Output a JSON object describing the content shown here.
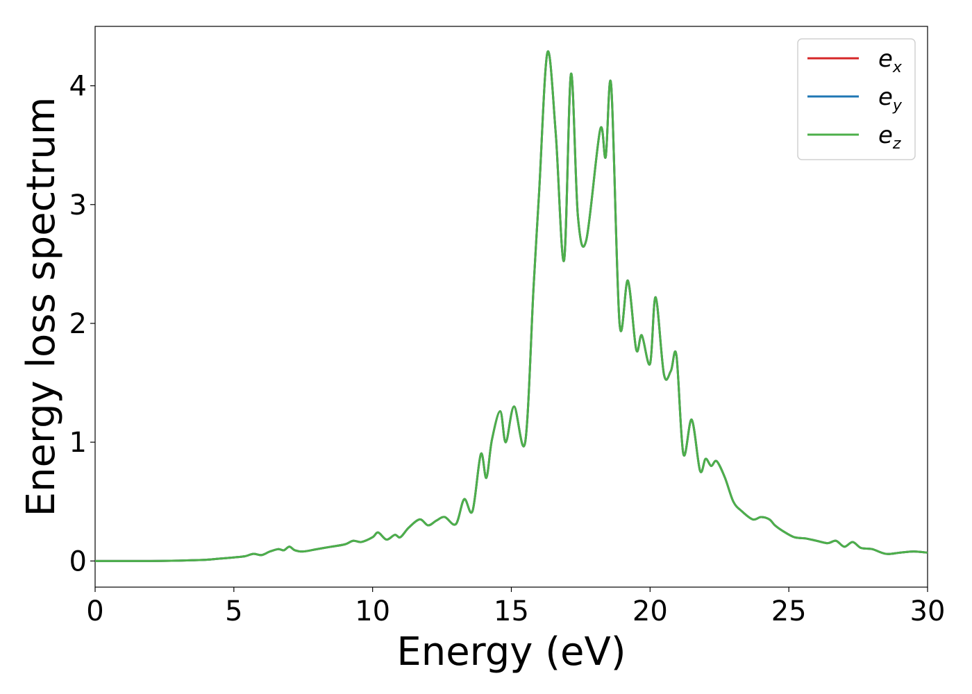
{
  "chart_data": {
    "type": "line",
    "xlabel": "Energy (eV)",
    "ylabel": "Energy loss spectrum",
    "xlim": [
      0,
      30
    ],
    "ylim": [
      -0.22,
      4.5
    ],
    "xticks": [
      0,
      5,
      10,
      15,
      20,
      25,
      30
    ],
    "yticks": [
      0,
      1,
      2,
      3,
      4
    ],
    "grid": false,
    "legend_position": "top-right",
    "series": [
      {
        "name": "e_x",
        "symbol": "e",
        "subscript": "x",
        "color": "#d62728"
      },
      {
        "name": "e_y",
        "symbol": "e",
        "subscript": "y",
        "color": "#1f77b4"
      },
      {
        "name": "e_z",
        "symbol": "e",
        "subscript": "z",
        "color": "#4daf4a"
      }
    ],
    "x": [
      0,
      1,
      2,
      3,
      3.5,
      4,
      4.5,
      5,
      5.4,
      5.7,
      6.0,
      6.3,
      6.6,
      6.8,
      7.0,
      7.2,
      7.5,
      8,
      8.5,
      9,
      9.3,
      9.6,
      10,
      10.2,
      10.5,
      10.8,
      11,
      11.3,
      11.7,
      12,
      12.3,
      12.6,
      13,
      13.3,
      13.6,
      13.9,
      14.1,
      14.3,
      14.6,
      14.8,
      15.1,
      15.5,
      15.8,
      16.0,
      16.3,
      16.6,
      16.9,
      17.15,
      17.4,
      17.7,
      18.2,
      18.4,
      18.6,
      18.9,
      19.2,
      19.5,
      19.7,
      20.0,
      20.2,
      20.5,
      20.75,
      20.95,
      21.2,
      21.5,
      21.8,
      22.0,
      22.2,
      22.4,
      22.7,
      23.0,
      23.3,
      23.7,
      24.0,
      24.3,
      24.5,
      24.8,
      25.2,
      25.6,
      26.0,
      26.4,
      26.7,
      27.0,
      27.3,
      27.6,
      28.0,
      28.5,
      29.0,
      29.5,
      30
    ]
  },
  "y_values_shared": [
    0,
    0,
    0,
    0.003,
    0.006,
    0.01,
    0.02,
    0.03,
    0.04,
    0.06,
    0.05,
    0.08,
    0.1,
    0.09,
    0.12,
    0.09,
    0.08,
    0.1,
    0.12,
    0.14,
    0.17,
    0.16,
    0.2,
    0.24,
    0.18,
    0.22,
    0.2,
    0.28,
    0.35,
    0.3,
    0.34,
    0.37,
    0.31,
    0.52,
    0.42,
    0.9,
    0.7,
    1.02,
    1.26,
    1.0,
    1.3,
    1.0,
    2.3,
    3.1,
    4.28,
    3.6,
    2.53,
    4.1,
    2.9,
    2.7,
    3.63,
    3.4,
    4.0,
    2.0,
    2.36,
    1.78,
    1.9,
    1.66,
    2.22,
    1.57,
    1.6,
    1.73,
    0.9,
    1.19,
    0.76,
    0.86,
    0.8,
    0.84,
    0.7,
    0.5,
    0.42,
    0.35,
    0.37,
    0.35,
    0.3,
    0.25,
    0.2,
    0.19,
    0.17,
    0.15,
    0.17,
    0.12,
    0.16,
    0.11,
    0.1,
    0.06,
    0.07,
    0.08,
    0.07
  ]
}
